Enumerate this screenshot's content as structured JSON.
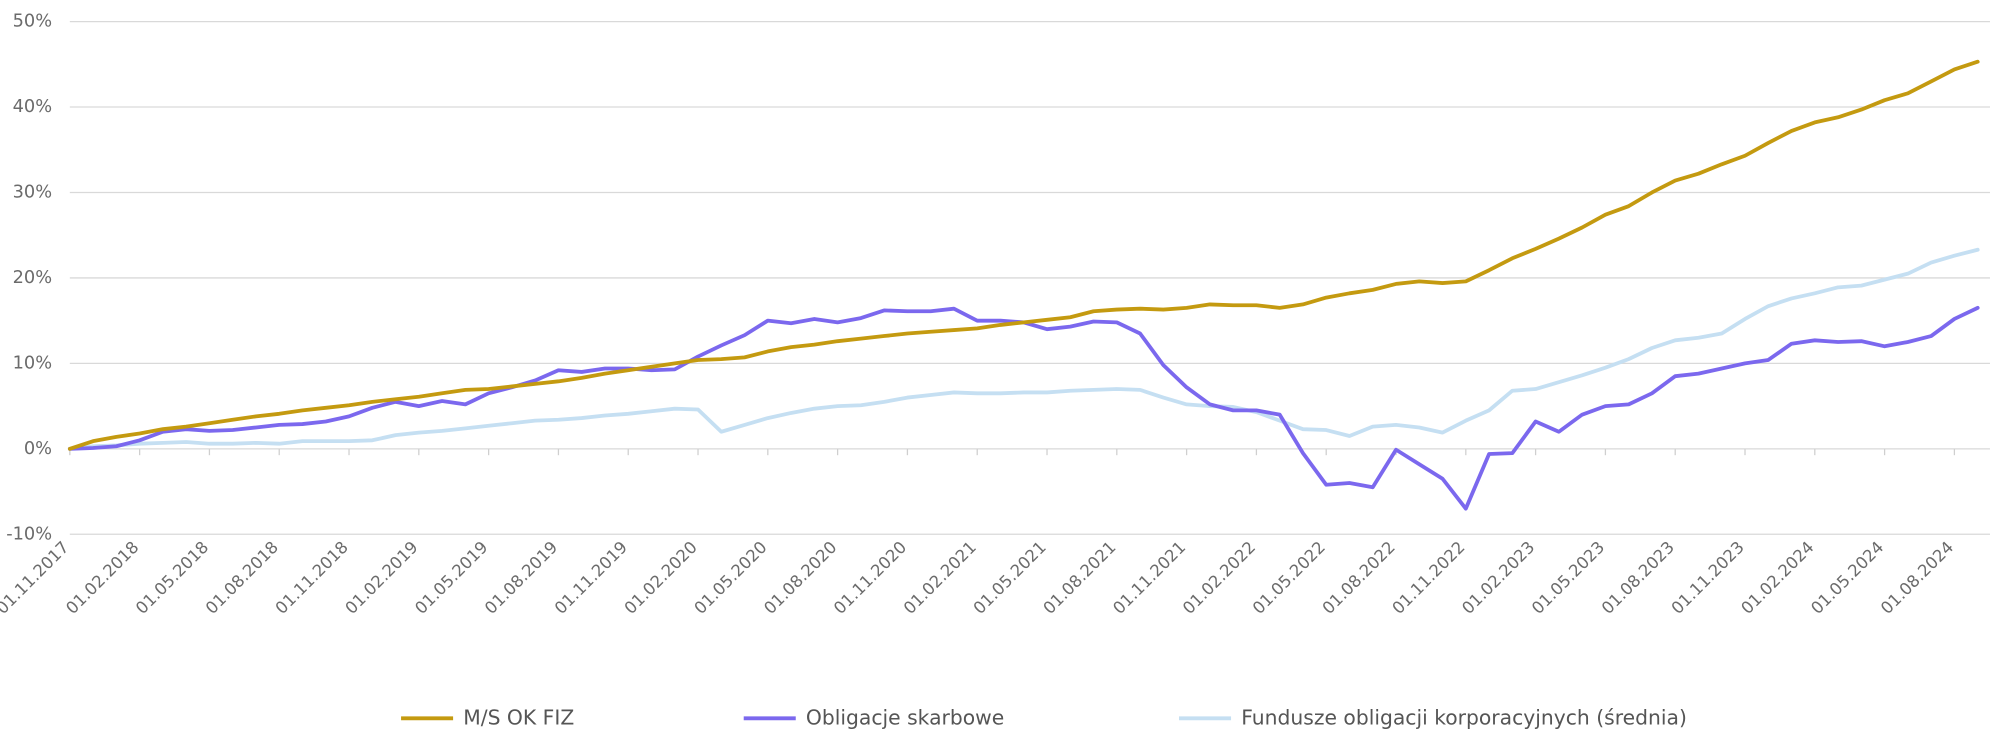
{
  "chart_data": {
    "type": "line",
    "categories": [
      "01.11.2017",
      null,
      null,
      "01.02.2018",
      null,
      null,
      "01.05.2018",
      null,
      null,
      "01.08.2018",
      null,
      null,
      "01.11.2018",
      null,
      null,
      "01.02.2019",
      null,
      null,
      "01.05.2019",
      null,
      null,
      "01.08.2019",
      null,
      null,
      "01.11.2019",
      null,
      null,
      "01.02.2020",
      null,
      null,
      "01.05.2020",
      null,
      null,
      "01.08.2020",
      null,
      null,
      "01.11.2020",
      null,
      null,
      "01.02.2021",
      null,
      null,
      "01.05.2021",
      null,
      null,
      "01.08.2021",
      null,
      null,
      "01.11.2021",
      null,
      null,
      "01.02.2022",
      null,
      null,
      "01.05.2022",
      null,
      null,
      "01.08.2022",
      null,
      null,
      "01.11.2022",
      null,
      null,
      "01.02.2023",
      null,
      null,
      "01.05.2023",
      null,
      null,
      "01.08.2023",
      null,
      null,
      "01.11.2023",
      null,
      null,
      "01.02.2024",
      null,
      null,
      "01.05.2024",
      null,
      null,
      "01.08.2024",
      null
    ],
    "series": [
      {
        "name": "M/S OK FIZ",
        "color": "#c49a10",
        "values": [
          0,
          0.9,
          1.4,
          1.8,
          2.3,
          2.6,
          3.0,
          3.4,
          3.8,
          4.1,
          4.5,
          4.8,
          5.1,
          5.5,
          5.8,
          6.1,
          6.5,
          6.9,
          7.0,
          7.3,
          7.6,
          7.9,
          8.3,
          8.8,
          9.2,
          9.6,
          10.0,
          10.4,
          10.5,
          10.7,
          11.4,
          11.9,
          12.2,
          12.6,
          12.9,
          13.2,
          13.5,
          13.7,
          13.9,
          14.1,
          14.5,
          14.8,
          15.1,
          15.4,
          16.1,
          16.3,
          16.4,
          16.3,
          16.5,
          16.9,
          16.8,
          16.8,
          16.5,
          16.9,
          17.7,
          18.2,
          18.6,
          19.3,
          19.6,
          19.4,
          19.6,
          20.9,
          22.3,
          23.4,
          24.6,
          25.9,
          27.4,
          28.4,
          30.0,
          31.4,
          32.2,
          33.3,
          34.3,
          35.8,
          37.2,
          38.2,
          38.8,
          39.7,
          40.8,
          41.6,
          43.0,
          44.4,
          45.3
        ]
      },
      {
        "name": "Obligacje skarbowe",
        "color": "#7b68ee",
        "values": [
          0,
          0.1,
          0.3,
          1.0,
          2.0,
          2.3,
          2.1,
          2.2,
          2.5,
          2.8,
          2.9,
          3.2,
          3.8,
          4.8,
          5.5,
          5.0,
          5.6,
          5.2,
          6.5,
          7.2,
          8.0,
          9.2,
          9.0,
          9.4,
          9.4,
          9.2,
          9.3,
          10.8,
          12.1,
          13.3,
          15.0,
          14.7,
          15.2,
          14.8,
          15.3,
          16.2,
          16.1,
          16.1,
          16.4,
          15.0,
          15.0,
          14.8,
          14.0,
          14.3,
          14.9,
          14.8,
          13.5,
          9.8,
          7.2,
          5.2,
          4.5,
          4.5,
          4.0,
          -0.5,
          -4.2,
          -4.0,
          -4.5,
          -0.1,
          -1.8,
          -3.5,
          -7.0,
          -0.6,
          -0.5,
          3.2,
          2.0,
          4.0,
          5.0,
          5.2,
          6.5,
          8.5,
          8.8,
          9.4,
          10.0,
          10.4,
          12.3,
          12.7,
          12.5,
          12.6,
          12.0,
          12.5,
          13.2,
          15.2,
          16.5
        ]
      },
      {
        "name": "Fundusze obligacji korporacyjnych (średnia)",
        "color": "#c5dff2",
        "values": [
          0,
          0.3,
          0.4,
          0.6,
          0.7,
          0.8,
          0.6,
          0.6,
          0.7,
          0.6,
          0.9,
          0.9,
          0.9,
          1.0,
          1.6,
          1.9,
          2.1,
          2.4,
          2.7,
          3.0,
          3.3,
          3.4,
          3.6,
          3.9,
          4.1,
          4.4,
          4.7,
          4.6,
          2.0,
          2.8,
          3.6,
          4.2,
          4.7,
          5.0,
          5.1,
          5.5,
          6.0,
          6.3,
          6.6,
          6.5,
          6.5,
          6.6,
          6.6,
          6.8,
          6.9,
          7.0,
          6.9,
          6.0,
          5.2,
          5.0,
          4.9,
          4.3,
          3.3,
          2.3,
          2.2,
          1.5,
          2.6,
          2.8,
          2.5,
          1.9,
          3.3,
          4.5,
          6.8,
          7.0,
          7.8,
          8.6,
          9.5,
          10.5,
          11.8,
          12.7,
          13.0,
          13.5,
          15.2,
          16.7,
          17.6,
          18.2,
          18.9,
          19.1,
          19.8,
          20.5,
          21.8,
          22.6,
          23.3
        ]
      }
    ],
    "ylim": [
      -10,
      50
    ],
    "yticks": [
      {
        "value": -10,
        "label": "-10%"
      },
      {
        "value": 0,
        "label": "0%"
      },
      {
        "value": 10,
        "label": "10%"
      },
      {
        "value": 20,
        "label": "20%"
      },
      {
        "value": 30,
        "label": "30%"
      },
      {
        "value": 40,
        "label": "40%"
      },
      {
        "value": 50,
        "label": "50%"
      }
    ],
    "grid": true,
    "legend": "bottom"
  }
}
